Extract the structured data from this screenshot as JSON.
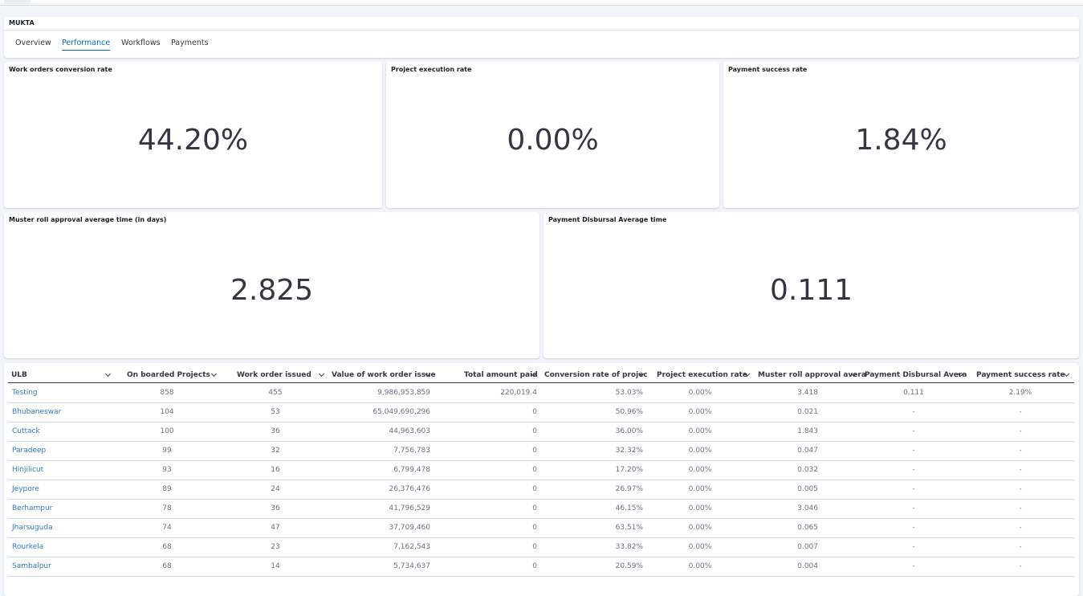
{
  "header": {
    "title": "MUKTA",
    "tabs": [
      "Overview",
      "Performance",
      "Workflows",
      "Payments"
    ],
    "selected_tab": 1
  },
  "metrics": [
    {
      "title": "Work orders conversion rate",
      "value": "44.20%"
    },
    {
      "title": "Project execution rate",
      "value": "0.00%"
    },
    {
      "title": "Payment success rate",
      "value": "1.84%"
    },
    {
      "title": "Muster roll approval average time (in days)",
      "value": "2.825"
    },
    {
      "title": "Payment Disbursal Average time",
      "value": "0.111"
    }
  ],
  "table": {
    "headers": [
      "ULB",
      "On boarded Projects",
      "Work order issued",
      "Value of work order issue",
      "Total amount paid",
      "Conversion rate of projec",
      "Project execution rate",
      "Muster roll approval avera",
      "Payment Disbursal Avera",
      "Payment success rate"
    ],
    "rows": [
      [
        "Testing",
        "858",
        "455",
        "9,986,953,859",
        "220,019.4",
        "53.03%",
        "0.00%",
        "3.418",
        "0.111",
        "2.19%"
      ],
      [
        "Bhubaneswar",
        "104",
        "53",
        "65,049,690,296",
        "0",
        "50.96%",
        "0.00%",
        "0.021",
        "-",
        "-"
      ],
      [
        "Cuttack",
        "100",
        "36",
        "44,963,603",
        "0",
        "36.00%",
        "0.00%",
        "1.843",
        "-",
        "-"
      ],
      [
        "Paradeep",
        "99",
        "32",
        "7,756,783",
        "0",
        "32.32%",
        "0.00%",
        "0.047",
        "-",
        "-"
      ],
      [
        "Hinjilicut",
        "93",
        "16",
        "6,799,478",
        "0",
        "17.20%",
        "0.00%",
        "0.032",
        "-",
        "-"
      ],
      [
        "Jeypore",
        "89",
        "24",
        "26,376,476",
        "0",
        "26.97%",
        "0.00%",
        "0.005",
        "-",
        "-"
      ],
      [
        "Berhampur",
        "78",
        "36",
        "41,796,529",
        "0",
        "46.15%",
        "0.00%",
        "3.046",
        "-",
        "-"
      ],
      [
        "Jharsuguda",
        "74",
        "47",
        "37,709,460",
        "0",
        "63.51%",
        "0.00%",
        "0.065",
        "-",
        "-"
      ],
      [
        "Rourkela",
        "68",
        "23",
        "7,162,543",
        "0",
        "33.82%",
        "0.00%",
        "0.007",
        "-",
        "-"
      ],
      [
        "Sambalpur",
        "68",
        "14",
        "5,734,637",
        "0",
        "20.59%",
        "0.00%",
        "0.004",
        "-",
        "-"
      ]
    ]
  }
}
